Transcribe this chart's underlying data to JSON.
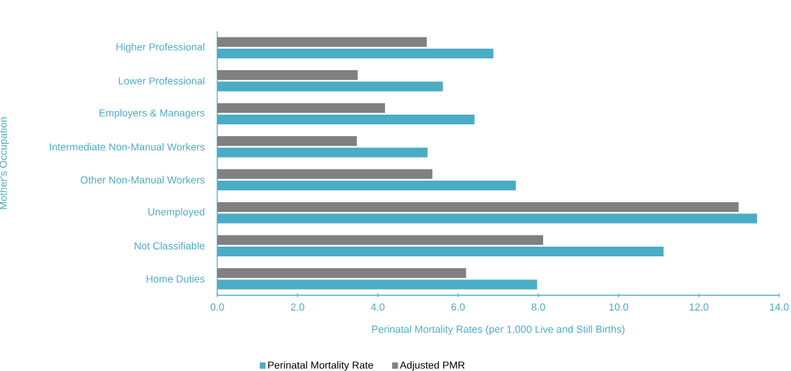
{
  "chart_data": {
    "type": "bar",
    "orientation": "horizontal",
    "xlabel": "Perinatal Mortality Rates (per 1,000 Live and Still Births)",
    "ylabel": "Mother's Occupation",
    "legend": "bottom",
    "categories": [
      "Higher Professional",
      "Lower Professional",
      "Employers & Managers",
      "Intermediate Non-Manual  Workers",
      "Other Non-Manual  Workers",
      "Unemployed",
      "Not Classifiable",
      "Home Duties"
    ],
    "series": [
      {
        "name": "Perinatal Mortality Rate",
        "color": "#4bacc6",
        "values": [
          6.88,
          5.62,
          6.41,
          5.24,
          7.44,
          13.45,
          11.12,
          7.97
        ]
      },
      {
        "name": "Adjusted PMR",
        "color": "#808080",
        "values": [
          5.22,
          3.5,
          4.18,
          3.48,
          5.36,
          12.99,
          8.12,
          6.2
        ]
      }
    ],
    "xlim": [
      0,
      14
    ],
    "xticks": [
      {
        "value": 0,
        "label": "0.0"
      },
      {
        "value": 2,
        "label": "2.0"
      },
      {
        "value": 4,
        "label": "4.0"
      },
      {
        "value": 6,
        "label": "6.0"
      },
      {
        "value": 8,
        "label": "8.0"
      },
      {
        "value": 10,
        "label": "10.0"
      },
      {
        "value": 12,
        "label": "12.0"
      },
      {
        "value": 14,
        "label": "14.0"
      }
    ]
  }
}
